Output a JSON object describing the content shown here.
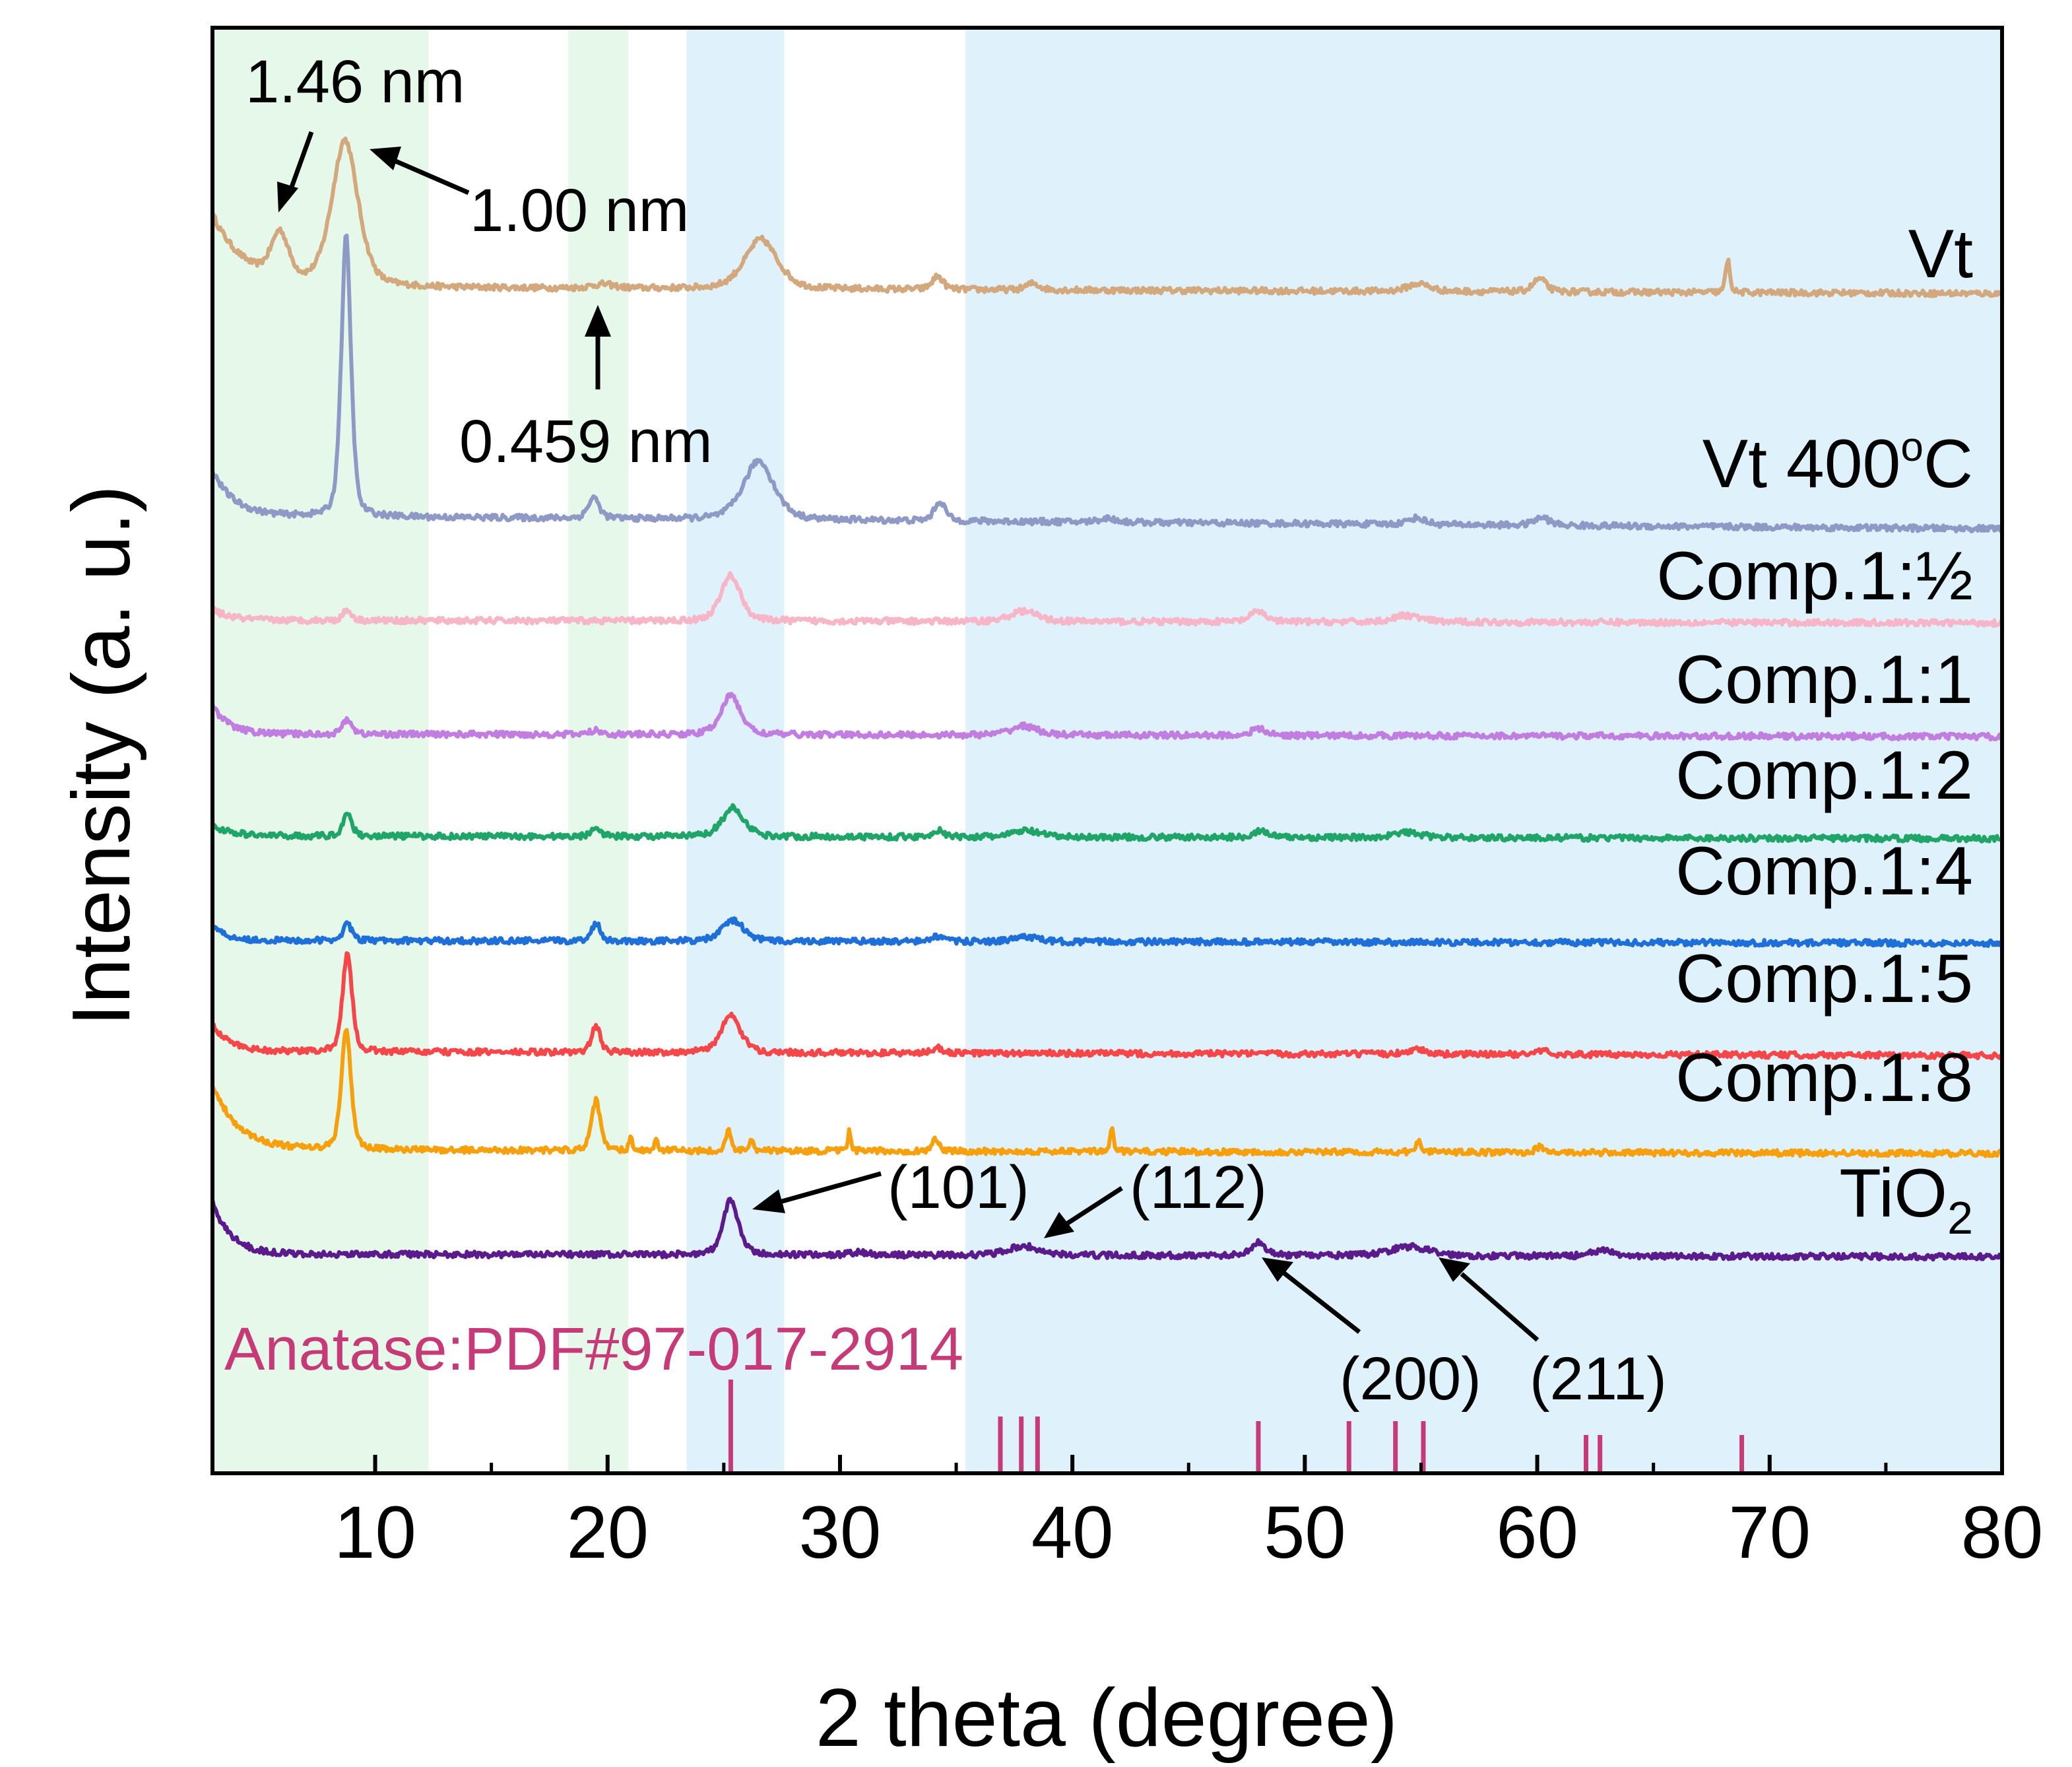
{
  "chart_data": {
    "type": "line",
    "title": "",
    "xlabel": "2 theta (degree)",
    "ylabel": "Intensity (a. u.)",
    "xlim": [
      3,
      80
    ],
    "xticks": [
      10,
      20,
      30,
      40,
      50,
      60,
      70,
      80
    ],
    "shaded_regions": [
      {
        "x0": 3,
        "x1": 12.3,
        "color": "#e6f8ea"
      },
      {
        "x0": 18.3,
        "x1": 20.9,
        "color": "#e6f8ea"
      },
      {
        "x0": 23.4,
        "x1": 27.6,
        "color": "#dff1fa"
      },
      {
        "x0": 35.4,
        "x1": 80,
        "color": "#dff1fa"
      }
    ],
    "series": [
      {
        "name": "Vt",
        "label_main": "Vt",
        "label_sub": "",
        "color": "#d2a87c",
        "offset": 7.4,
        "amp": 1.0,
        "bg": {
          "a": 0.55,
          "t": 1.4
        },
        "peaks": [
          [
            5.9,
            0.35,
            0.4
          ],
          [
            8.7,
            1.12,
            0.6
          ],
          [
            26.6,
            0.38,
            0.75
          ],
          [
            34.2,
            0.1,
            0.25
          ],
          [
            60.1,
            0.1,
            0.3
          ],
          [
            68.2,
            0.25,
            0.1
          ],
          [
            54.9,
            0.06,
            0.5
          ],
          [
            19.8,
            0.03,
            0.5
          ],
          [
            38.3,
            0.05,
            0.3
          ]
        ],
        "baseline_drop": 0.05
      },
      {
        "name": "Vt  400°C",
        "label_main": "Vt  400",
        "label_sup": "o",
        "label_tail": "C",
        "color": "#8f99c6",
        "offset": 5.65,
        "amp": 1.0,
        "bg": {
          "a": 0.35,
          "t": 0.9
        },
        "peaks": [
          [
            8.75,
            2.15,
            0.22
          ],
          [
            19.4,
            0.16,
            0.25
          ],
          [
            26.5,
            0.45,
            0.7
          ],
          [
            34.3,
            0.15,
            0.25
          ],
          [
            60.2,
            0.06,
            0.35
          ],
          [
            54.8,
            0.05,
            0.4
          ],
          [
            41.5,
            0.03,
            0.4
          ]
        ],
        "baseline_drop": 0.1
      },
      {
        "name": "Comp.1:½",
        "label_main": "Comp.1:½",
        "color": "#f7b6c7",
        "offset": 4.85,
        "amp": 1.0,
        "bg": {
          "a": 0.08,
          "t": 0.8
        },
        "peaks": [
          [
            8.8,
            0.08,
            0.2
          ],
          [
            25.3,
            0.35,
            0.45
          ],
          [
            37.9,
            0.08,
            0.6
          ],
          [
            48.0,
            0.08,
            0.35
          ],
          [
            54.4,
            0.05,
            0.6
          ]
        ],
        "baseline_drop": 0.02
      },
      {
        "name": "Comp.1:1",
        "label_main": "Comp.1:1",
        "color": "#c17de0",
        "offset": 3.98,
        "amp": 1.0,
        "bg": {
          "a": 0.22,
          "t": 0.7
        },
        "peaks": [
          [
            8.8,
            0.12,
            0.2
          ],
          [
            25.3,
            0.3,
            0.45
          ],
          [
            37.9,
            0.07,
            0.6
          ],
          [
            48.0,
            0.05,
            0.35
          ],
          [
            19.5,
            0.03,
            0.3
          ]
        ],
        "baseline_drop": 0.02
      },
      {
        "name": "Comp.1:2",
        "label_main": "Comp.1:2",
        "color": "#1fa567",
        "offset": 3.2,
        "amp": 1.0,
        "bg": {
          "a": 0.08,
          "t": 0.8
        },
        "peaks": [
          [
            8.8,
            0.18,
            0.2
          ],
          [
            19.5,
            0.08,
            0.2
          ],
          [
            25.4,
            0.22,
            0.5
          ],
          [
            34.2,
            0.05,
            0.25
          ],
          [
            38.0,
            0.05,
            0.6
          ],
          [
            48.1,
            0.05,
            0.35
          ],
          [
            54.4,
            0.04,
            0.6
          ]
        ],
        "baseline_drop": 0.02
      },
      {
        "name": "Comp.1:4",
        "label_main": "Comp.1:4",
        "color": "#1e6fd9",
        "offset": 2.4,
        "amp": 1.0,
        "bg": {
          "a": 0.12,
          "t": 0.6
        },
        "peaks": [
          [
            8.8,
            0.13,
            0.2
          ],
          [
            19.5,
            0.14,
            0.2
          ],
          [
            25.4,
            0.16,
            0.5
          ],
          [
            34.2,
            0.04,
            0.25
          ],
          [
            38.0,
            0.04,
            0.5
          ]
        ],
        "baseline_drop": 0.02
      },
      {
        "name": "Comp.1:5",
        "label_main": "Comp.1:5",
        "color": "#f5474a",
        "offset": 1.55,
        "amp": 1.0,
        "bg": {
          "a": 0.2,
          "t": 0.8
        },
        "peaks": [
          [
            8.8,
            0.75,
            0.22
          ],
          [
            19.5,
            0.2,
            0.2
          ],
          [
            25.3,
            0.28,
            0.45
          ],
          [
            34.2,
            0.04,
            0.25
          ],
          [
            54.8,
            0.04,
            0.4
          ],
          [
            60.2,
            0.03,
            0.3
          ]
        ],
        "baseline_drop": 0.03
      },
      {
        "name": "Comp.1:8",
        "label_main": "Comp.1:8",
        "color": "#f7a00e",
        "offset": 0.8,
        "amp": 1.0,
        "bg": {
          "a": 0.5,
          "t": 1.1
        },
        "peaks": [
          [
            8.75,
            0.92,
            0.22
          ],
          [
            19.5,
            0.38,
            0.2
          ],
          [
            21.0,
            0.1,
            0.08
          ],
          [
            22.1,
            0.08,
            0.08
          ],
          [
            25.2,
            0.15,
            0.12
          ],
          [
            26.2,
            0.1,
            0.1
          ],
          [
            30.4,
            0.15,
            0.07
          ],
          [
            34.1,
            0.1,
            0.15
          ],
          [
            41.7,
            0.18,
            0.08
          ],
          [
            54.9,
            0.08,
            0.15
          ],
          [
            60.1,
            0.04,
            0.2
          ]
        ],
        "baseline_drop": 0.03
      },
      {
        "name": "TiO2",
        "label_main": "TiO",
        "label_subscript": "2",
        "color": "#5c1b8c",
        "offset": 0.0,
        "amp": 1.0,
        "bg": {
          "a": 0.4,
          "t": 0.8
        },
        "peaks": [
          [
            25.3,
            0.42,
            0.35
          ],
          [
            37.9,
            0.07,
            0.7
          ],
          [
            48.0,
            0.1,
            0.35
          ],
          [
            54.5,
            0.07,
            0.9
          ],
          [
            62.8,
            0.04,
            0.5
          ],
          [
            30.8,
            0.02,
            0.4
          ]
        ],
        "baseline_drop": 0.02
      }
    ],
    "reference": {
      "label": "Anatase:PDF#97-017-2914",
      "color": "#c73a78",
      "lines": [
        [
          25.3,
          1.0
        ],
        [
          36.9,
          0.6
        ],
        [
          37.8,
          0.6
        ],
        [
          38.5,
          0.6
        ],
        [
          48.0,
          0.55
        ],
        [
          51.9,
          0.55
        ],
        [
          53.9,
          0.55
        ],
        [
          55.1,
          0.55
        ],
        [
          62.1,
          0.4
        ],
        [
          62.7,
          0.4
        ],
        [
          68.8,
          0.4
        ]
      ]
    },
    "annotations": [
      {
        "text": "1.46 nm",
        "arrow_x": 5.9
      },
      {
        "text": "1.00 nm",
        "arrow_x": 8.9
      },
      {
        "text": "0.459 nm",
        "arrow_x": 19.7
      },
      {
        "text": "(101)",
        "arrow_x": 25.5
      },
      {
        "text": "(112)",
        "arrow_x": 38.0
      },
      {
        "text": "(200)",
        "arrow_x": 48.1
      },
      {
        "text": "(211)",
        "arrow_x": 54.9
      }
    ]
  }
}
